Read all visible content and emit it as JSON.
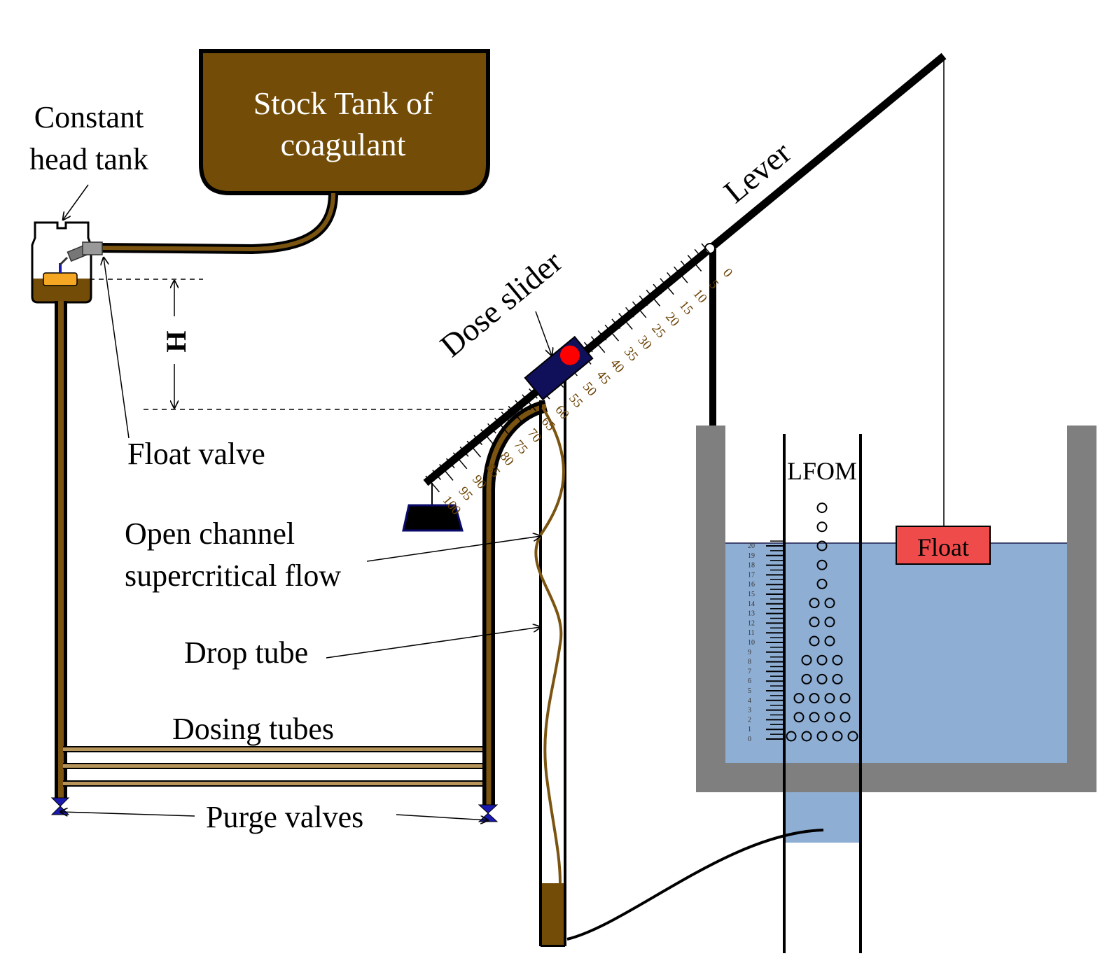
{
  "labels": {
    "constant_head_tank": [
      "Constant",
      "head tank"
    ],
    "stock_tank": [
      "Stock Tank of",
      "coagulant"
    ],
    "height": "H",
    "float_valve": "Float valve",
    "open_channel": [
      "Open channel",
      "supercritical flow"
    ],
    "drop_tube": "Drop tube",
    "dosing_tubes": "Dosing tubes",
    "purge_valves": "Purge valves",
    "dose_slider": "Dose slider",
    "lever": "Lever",
    "lfom": "LFOM",
    "float": "Float"
  },
  "dose_scale": [
    "0",
    "5",
    "10",
    "15",
    "20",
    "25",
    "30",
    "35",
    "40",
    "45",
    "50",
    "55",
    "60",
    "65",
    "70",
    "75",
    "80",
    "85",
    "90",
    "95",
    "100"
  ],
  "lfom_scale": [
    "0",
    "1",
    "2",
    "3",
    "4",
    "5",
    "6",
    "7",
    "8",
    "9",
    "10",
    "11",
    "12",
    "13",
    "14",
    "15",
    "16",
    "17",
    "18",
    "19",
    "20"
  ],
  "lfom_orifice_rows": [
    5,
    4,
    4,
    3,
    3,
    2,
    2,
    2,
    1,
    1,
    1,
    1,
    1
  ],
  "colors": {
    "coagulant": "#734d07",
    "coagulant_line": "#7a5410",
    "water": "#8eaed4",
    "tank_wall": "#7f7f7f",
    "slider": "#0f0f5a",
    "slider_dot": "#ff0000",
    "float_fill": "#ef4b4b",
    "float_in_tank": "#f5a623",
    "valve": "#1a1ab0",
    "scale_text": "#6b4306"
  },
  "icons": {
    "purge_valve": "bowtie-valve-icon",
    "float_valve": "float-valve-icon"
  }
}
